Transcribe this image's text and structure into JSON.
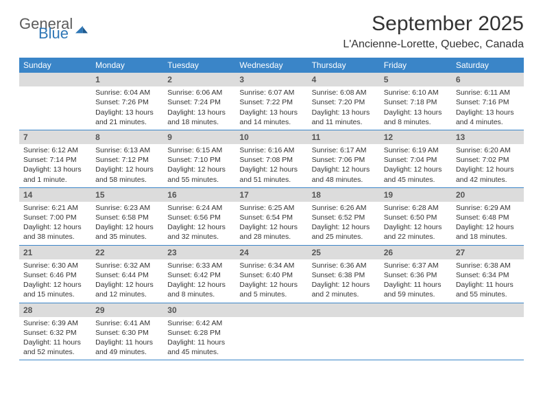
{
  "brand": {
    "word1": "General",
    "word2": "Blue",
    "accent": "#2f77b6",
    "muted": "#5b5b5b"
  },
  "title": "September 2025",
  "location": "L'Ancienne-Lorette, Quebec, Canada",
  "colors": {
    "header_bg": "#3a85c8",
    "header_fg": "#ffffff",
    "daynum_bg": "#dcdcdc",
    "daynum_fg": "#555555",
    "rule": "#3a85c8",
    "text": "#333333",
    "page_bg": "#ffffff"
  },
  "weekdays": [
    "Sunday",
    "Monday",
    "Tuesday",
    "Wednesday",
    "Thursday",
    "Friday",
    "Saturday"
  ],
  "weeks": [
    [
      {
        "n": "",
        "sr": "",
        "ss": "",
        "dl": ""
      },
      {
        "n": "1",
        "sr": "Sunrise: 6:04 AM",
        "ss": "Sunset: 7:26 PM",
        "dl": "Daylight: 13 hours and 21 minutes."
      },
      {
        "n": "2",
        "sr": "Sunrise: 6:06 AM",
        "ss": "Sunset: 7:24 PM",
        "dl": "Daylight: 13 hours and 18 minutes."
      },
      {
        "n": "3",
        "sr": "Sunrise: 6:07 AM",
        "ss": "Sunset: 7:22 PM",
        "dl": "Daylight: 13 hours and 14 minutes."
      },
      {
        "n": "4",
        "sr": "Sunrise: 6:08 AM",
        "ss": "Sunset: 7:20 PM",
        "dl": "Daylight: 13 hours and 11 minutes."
      },
      {
        "n": "5",
        "sr": "Sunrise: 6:10 AM",
        "ss": "Sunset: 7:18 PM",
        "dl": "Daylight: 13 hours and 8 minutes."
      },
      {
        "n": "6",
        "sr": "Sunrise: 6:11 AM",
        "ss": "Sunset: 7:16 PM",
        "dl": "Daylight: 13 hours and 4 minutes."
      }
    ],
    [
      {
        "n": "7",
        "sr": "Sunrise: 6:12 AM",
        "ss": "Sunset: 7:14 PM",
        "dl": "Daylight: 13 hours and 1 minute."
      },
      {
        "n": "8",
        "sr": "Sunrise: 6:13 AM",
        "ss": "Sunset: 7:12 PM",
        "dl": "Daylight: 12 hours and 58 minutes."
      },
      {
        "n": "9",
        "sr": "Sunrise: 6:15 AM",
        "ss": "Sunset: 7:10 PM",
        "dl": "Daylight: 12 hours and 55 minutes."
      },
      {
        "n": "10",
        "sr": "Sunrise: 6:16 AM",
        "ss": "Sunset: 7:08 PM",
        "dl": "Daylight: 12 hours and 51 minutes."
      },
      {
        "n": "11",
        "sr": "Sunrise: 6:17 AM",
        "ss": "Sunset: 7:06 PM",
        "dl": "Daylight: 12 hours and 48 minutes."
      },
      {
        "n": "12",
        "sr": "Sunrise: 6:19 AM",
        "ss": "Sunset: 7:04 PM",
        "dl": "Daylight: 12 hours and 45 minutes."
      },
      {
        "n": "13",
        "sr": "Sunrise: 6:20 AM",
        "ss": "Sunset: 7:02 PM",
        "dl": "Daylight: 12 hours and 42 minutes."
      }
    ],
    [
      {
        "n": "14",
        "sr": "Sunrise: 6:21 AM",
        "ss": "Sunset: 7:00 PM",
        "dl": "Daylight: 12 hours and 38 minutes."
      },
      {
        "n": "15",
        "sr": "Sunrise: 6:23 AM",
        "ss": "Sunset: 6:58 PM",
        "dl": "Daylight: 12 hours and 35 minutes."
      },
      {
        "n": "16",
        "sr": "Sunrise: 6:24 AM",
        "ss": "Sunset: 6:56 PM",
        "dl": "Daylight: 12 hours and 32 minutes."
      },
      {
        "n": "17",
        "sr": "Sunrise: 6:25 AM",
        "ss": "Sunset: 6:54 PM",
        "dl": "Daylight: 12 hours and 28 minutes."
      },
      {
        "n": "18",
        "sr": "Sunrise: 6:26 AM",
        "ss": "Sunset: 6:52 PM",
        "dl": "Daylight: 12 hours and 25 minutes."
      },
      {
        "n": "19",
        "sr": "Sunrise: 6:28 AM",
        "ss": "Sunset: 6:50 PM",
        "dl": "Daylight: 12 hours and 22 minutes."
      },
      {
        "n": "20",
        "sr": "Sunrise: 6:29 AM",
        "ss": "Sunset: 6:48 PM",
        "dl": "Daylight: 12 hours and 18 minutes."
      }
    ],
    [
      {
        "n": "21",
        "sr": "Sunrise: 6:30 AM",
        "ss": "Sunset: 6:46 PM",
        "dl": "Daylight: 12 hours and 15 minutes."
      },
      {
        "n": "22",
        "sr": "Sunrise: 6:32 AM",
        "ss": "Sunset: 6:44 PM",
        "dl": "Daylight: 12 hours and 12 minutes."
      },
      {
        "n": "23",
        "sr": "Sunrise: 6:33 AM",
        "ss": "Sunset: 6:42 PM",
        "dl": "Daylight: 12 hours and 8 minutes."
      },
      {
        "n": "24",
        "sr": "Sunrise: 6:34 AM",
        "ss": "Sunset: 6:40 PM",
        "dl": "Daylight: 12 hours and 5 minutes."
      },
      {
        "n": "25",
        "sr": "Sunrise: 6:36 AM",
        "ss": "Sunset: 6:38 PM",
        "dl": "Daylight: 12 hours and 2 minutes."
      },
      {
        "n": "26",
        "sr": "Sunrise: 6:37 AM",
        "ss": "Sunset: 6:36 PM",
        "dl": "Daylight: 11 hours and 59 minutes."
      },
      {
        "n": "27",
        "sr": "Sunrise: 6:38 AM",
        "ss": "Sunset: 6:34 PM",
        "dl": "Daylight: 11 hours and 55 minutes."
      }
    ],
    [
      {
        "n": "28",
        "sr": "Sunrise: 6:39 AM",
        "ss": "Sunset: 6:32 PM",
        "dl": "Daylight: 11 hours and 52 minutes."
      },
      {
        "n": "29",
        "sr": "Sunrise: 6:41 AM",
        "ss": "Sunset: 6:30 PM",
        "dl": "Daylight: 11 hours and 49 minutes."
      },
      {
        "n": "30",
        "sr": "Sunrise: 6:42 AM",
        "ss": "Sunset: 6:28 PM",
        "dl": "Daylight: 11 hours and 45 minutes."
      },
      {
        "n": "",
        "sr": "",
        "ss": "",
        "dl": ""
      },
      {
        "n": "",
        "sr": "",
        "ss": "",
        "dl": ""
      },
      {
        "n": "",
        "sr": "",
        "ss": "",
        "dl": ""
      },
      {
        "n": "",
        "sr": "",
        "ss": "",
        "dl": ""
      }
    ]
  ]
}
